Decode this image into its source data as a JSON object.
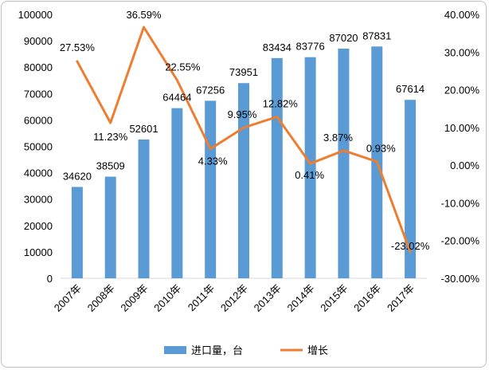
{
  "chart_data": {
    "type": "bar+line",
    "categories": [
      "2007年",
      "2008年",
      "2009年",
      "2010年",
      "2011年",
      "2012年",
      "2013年",
      "2014年",
      "2015年",
      "2016年",
      "2017年"
    ],
    "series": [
      {
        "name": "进口量，台",
        "type": "bar",
        "axis": "left",
        "color": "#5b9bd5",
        "values": [
          34620,
          38509,
          52601,
          64464,
          67256,
          73951,
          83434,
          83776,
          87020,
          87831,
          67614
        ],
        "labels": [
          "34620",
          "38509",
          "52601",
          "64464",
          "67256",
          "73951",
          "83434",
          "83776",
          "87020",
          "87831",
          "67614"
        ]
      },
      {
        "name": "增长",
        "type": "line",
        "axis": "right",
        "color": "#ed7d31",
        "values": [
          27.53,
          11.23,
          36.59,
          22.55,
          4.33,
          9.95,
          12.82,
          0.41,
          3.87,
          0.93,
          -23.02
        ],
        "labels": [
          "27.53%",
          "11.23%",
          "36.59%",
          "22.55%",
          "4.33%",
          "9.95%",
          "12.82%",
          "0.41%",
          "3.87%",
          "0.93%",
          "-23.02%"
        ]
      }
    ],
    "left_axis": {
      "ylim": [
        0,
        100000
      ],
      "ticks": [
        0,
        10000,
        20000,
        30000,
        40000,
        50000,
        60000,
        70000,
        80000,
        90000,
        100000
      ],
      "tick_labels": [
        "0",
        "10000",
        "20000",
        "30000",
        "40000",
        "50000",
        "60000",
        "70000",
        "80000",
        "90000",
        "100000"
      ]
    },
    "right_axis": {
      "ylim": [
        -30,
        40
      ],
      "ticks": [
        -30,
        -20,
        -10,
        0,
        10,
        20,
        30,
        40
      ],
      "tick_labels": [
        "-30.00%",
        "-20.00%",
        "-10.00%",
        "0.00%",
        "10.00%",
        "20.00%",
        "30.00%",
        "40.00%"
      ]
    },
    "grid": false,
    "legend": {
      "position": "bottom",
      "entries": [
        "进口量，台",
        "增长"
      ]
    }
  }
}
